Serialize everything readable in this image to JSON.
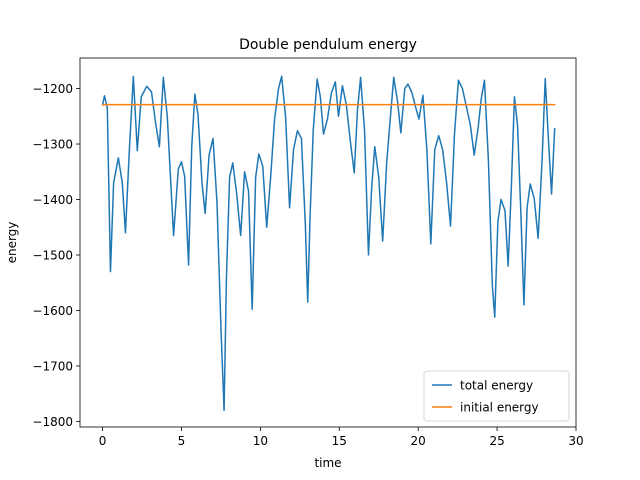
{
  "chart_data": {
    "type": "line",
    "title": "Double pendulum energy",
    "xlabel": "time",
    "ylabel": "energy",
    "xlim": [
      -1.43,
      30.0
    ],
    "ylim": [
      -1810,
      -1145
    ],
    "xticks": [
      0,
      5,
      10,
      15,
      20,
      25,
      30
    ],
    "yticks": [
      -1800,
      -1700,
      -1600,
      -1500,
      -1400,
      -1300,
      -1200
    ],
    "xtick_labels": [
      "0",
      "5",
      "10",
      "15",
      "20",
      "25",
      "30"
    ],
    "ytick_labels": [
      "−1800",
      "−1700",
      "−1600",
      "−1500",
      "−1400",
      "−1300",
      "−1200"
    ],
    "grid": false,
    "legend": {
      "position": "bottom-right"
    },
    "series": [
      {
        "name": "total energy",
        "color": "#1f77b4",
        "points": [
          [
            0.0,
            -1230
          ],
          [
            0.12,
            -1213
          ],
          [
            0.3,
            -1235
          ],
          [
            0.5,
            -1530
          ],
          [
            0.7,
            -1370
          ],
          [
            1.0,
            -1325
          ],
          [
            1.25,
            -1370
          ],
          [
            1.45,
            -1460
          ],
          [
            1.7,
            -1310
          ],
          [
            1.95,
            -1178
          ],
          [
            2.2,
            -1312
          ],
          [
            2.45,
            -1215
          ],
          [
            2.8,
            -1196
          ],
          [
            3.1,
            -1206
          ],
          [
            3.35,
            -1260
          ],
          [
            3.6,
            -1305
          ],
          [
            3.85,
            -1180
          ],
          [
            4.1,
            -1250
          ],
          [
            4.5,
            -1465
          ],
          [
            4.8,
            -1345
          ],
          [
            5.0,
            -1332
          ],
          [
            5.2,
            -1358
          ],
          [
            5.45,
            -1518
          ],
          [
            5.65,
            -1305
          ],
          [
            5.85,
            -1210
          ],
          [
            6.05,
            -1248
          ],
          [
            6.3,
            -1370
          ],
          [
            6.5,
            -1425
          ],
          [
            6.75,
            -1320
          ],
          [
            7.0,
            -1290
          ],
          [
            7.25,
            -1405
          ],
          [
            7.5,
            -1630
          ],
          [
            7.7,
            -1780
          ],
          [
            7.85,
            -1540
          ],
          [
            8.05,
            -1360
          ],
          [
            8.25,
            -1334
          ],
          [
            8.5,
            -1390
          ],
          [
            8.75,
            -1465
          ],
          [
            9.0,
            -1350
          ],
          [
            9.25,
            -1385
          ],
          [
            9.48,
            -1598
          ],
          [
            9.7,
            -1360
          ],
          [
            9.9,
            -1318
          ],
          [
            10.15,
            -1340
          ],
          [
            10.4,
            -1450
          ],
          [
            10.65,
            -1360
          ],
          [
            10.9,
            -1255
          ],
          [
            11.15,
            -1200
          ],
          [
            11.35,
            -1178
          ],
          [
            11.6,
            -1252
          ],
          [
            11.85,
            -1415
          ],
          [
            12.1,
            -1310
          ],
          [
            12.35,
            -1276
          ],
          [
            12.6,
            -1290
          ],
          [
            12.85,
            -1445
          ],
          [
            13.0,
            -1585
          ],
          [
            13.15,
            -1430
          ],
          [
            13.35,
            -1275
          ],
          [
            13.6,
            -1183
          ],
          [
            13.8,
            -1215
          ],
          [
            14.0,
            -1282
          ],
          [
            14.25,
            -1255
          ],
          [
            14.5,
            -1208
          ],
          [
            14.75,
            -1188
          ],
          [
            14.95,
            -1250
          ],
          [
            15.2,
            -1195
          ],
          [
            15.45,
            -1230
          ],
          [
            15.7,
            -1295
          ],
          [
            15.95,
            -1352
          ],
          [
            16.15,
            -1240
          ],
          [
            16.35,
            -1180
          ],
          [
            16.6,
            -1275
          ],
          [
            16.85,
            -1500
          ],
          [
            17.05,
            -1380
          ],
          [
            17.25,
            -1305
          ],
          [
            17.5,
            -1360
          ],
          [
            17.75,
            -1475
          ],
          [
            18.0,
            -1335
          ],
          [
            18.2,
            -1265
          ],
          [
            18.45,
            -1180
          ],
          [
            18.7,
            -1225
          ],
          [
            18.9,
            -1280
          ],
          [
            19.15,
            -1200
          ],
          [
            19.35,
            -1192
          ],
          [
            19.6,
            -1207
          ],
          [
            19.85,
            -1235
          ],
          [
            20.05,
            -1255
          ],
          [
            20.3,
            -1212
          ],
          [
            20.55,
            -1310
          ],
          [
            20.8,
            -1480
          ],
          [
            21.05,
            -1310
          ],
          [
            21.3,
            -1285
          ],
          [
            21.55,
            -1310
          ],
          [
            21.8,
            -1370
          ],
          [
            22.05,
            -1448
          ],
          [
            22.3,
            -1282
          ],
          [
            22.55,
            -1185
          ],
          [
            22.8,
            -1200
          ],
          [
            23.05,
            -1232
          ],
          [
            23.3,
            -1265
          ],
          [
            23.55,
            -1320
          ],
          [
            23.8,
            -1270
          ],
          [
            24.0,
            -1218
          ],
          [
            24.2,
            -1185
          ],
          [
            24.45,
            -1330
          ],
          [
            24.7,
            -1555
          ],
          [
            24.85,
            -1612
          ],
          [
            25.05,
            -1440
          ],
          [
            25.25,
            -1400
          ],
          [
            25.5,
            -1420
          ],
          [
            25.7,
            -1520
          ],
          [
            25.9,
            -1380
          ],
          [
            26.1,
            -1215
          ],
          [
            26.3,
            -1268
          ],
          [
            26.5,
            -1420
          ],
          [
            26.7,
            -1590
          ],
          [
            26.9,
            -1415
          ],
          [
            27.1,
            -1372
          ],
          [
            27.35,
            -1398
          ],
          [
            27.6,
            -1470
          ],
          [
            27.85,
            -1330
          ],
          [
            28.05,
            -1182
          ],
          [
            28.25,
            -1290
          ],
          [
            28.45,
            -1390
          ],
          [
            28.65,
            -1272
          ]
        ]
      },
      {
        "name": "initial energy",
        "color": "#ff7f0e",
        "points": [
          [
            0.0,
            -1229
          ],
          [
            28.65,
            -1229
          ]
        ]
      }
    ]
  }
}
